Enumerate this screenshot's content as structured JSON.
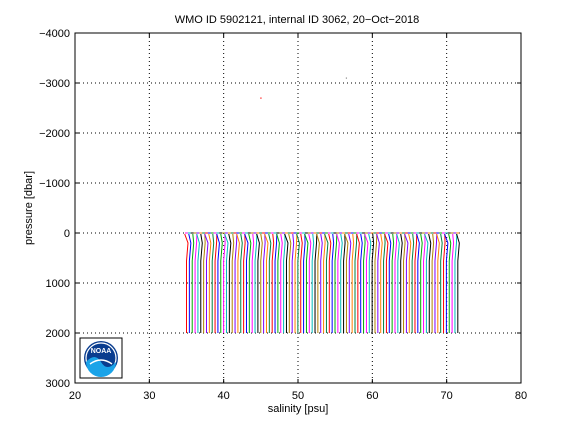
{
  "chart_data": {
    "type": "line",
    "title": "WMO ID 5902121, internal ID 3062, 20−Oct−2018",
    "xlabel": "salinity [psu]",
    "ylabel": "pressure [dbar]",
    "xlim": [
      20,
      80
    ],
    "ylim": [
      -4000,
      3000
    ],
    "y_reversed": true,
    "grid": true,
    "x_ticks": [
      20,
      30,
      40,
      50,
      60,
      70,
      80
    ],
    "x_tick_labels": [
      "20",
      "30",
      "40",
      "50",
      "60",
      "70",
      "80"
    ],
    "y_ticks": [
      -4000,
      -3000,
      -2000,
      -1000,
      0,
      1000,
      2000,
      3000
    ],
    "y_tick_labels": [
      "−4000",
      "−3000",
      "−2000",
      "−1000",
      "0",
      "1000",
      "2000",
      "3000"
    ],
    "profiles": {
      "count": 96,
      "salinity_start": 35.0,
      "salinity_end": 71.5,
      "pressure_top": 0,
      "pressure_bottom": 2000
    },
    "outliers": [
      {
        "x": 45.0,
        "y": -2700
      },
      {
        "x": 56.5,
        "y": -3100
      }
    ],
    "palette": [
      "#ff0000",
      "#0000ff",
      "#00aa00",
      "#ff00ff",
      "#00bbbb",
      "#000000",
      "#b08000",
      "#7f00ff",
      "#ff8000",
      "#008040"
    ]
  },
  "logo": {
    "text": "NOAA",
    "colors": {
      "outer": "#0a3d8f",
      "wave": "#1aa3e8",
      "ring": "#ffffff"
    }
  }
}
